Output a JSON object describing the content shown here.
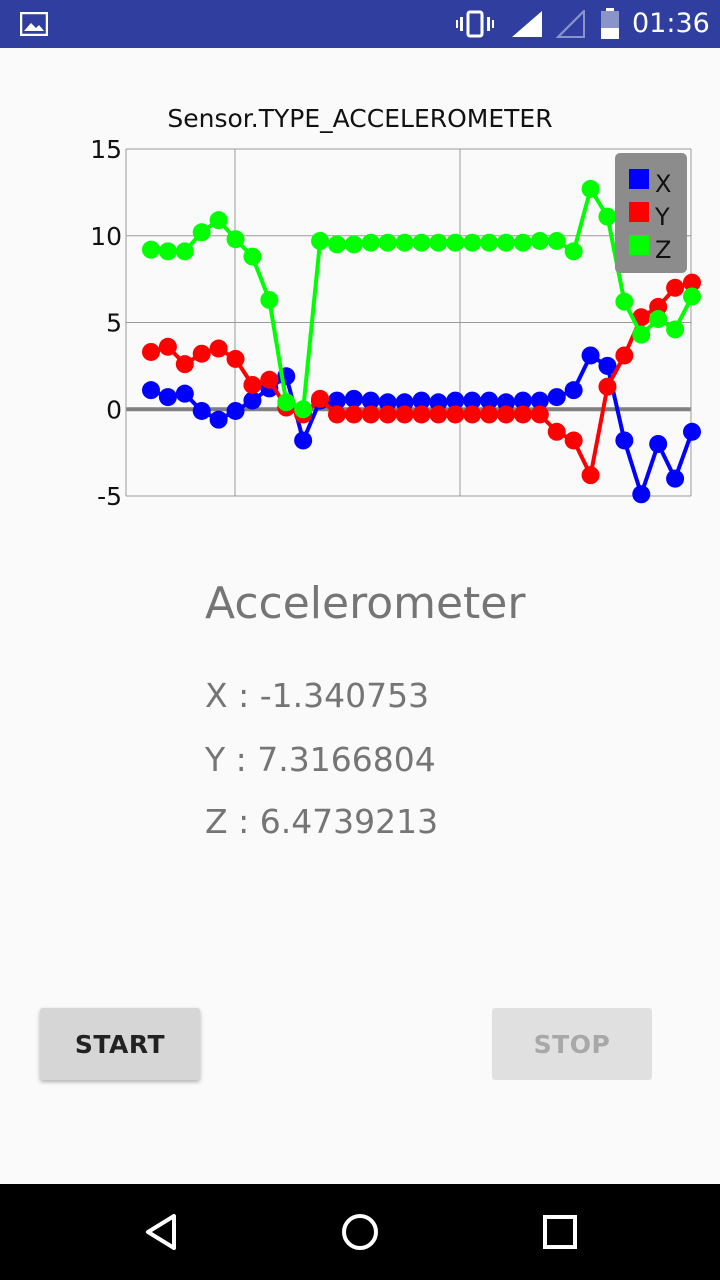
{
  "status_bar": {
    "time": "01:36",
    "icons": [
      "image-notification-icon",
      "vibrate-icon",
      "signal-icon",
      "signal-empty-icon",
      "battery-icon"
    ]
  },
  "chart_data": {
    "type": "line",
    "title": "Sensor.TYPE_ACCELEROMETER",
    "xlabel": "",
    "ylabel": "",
    "ylim": [
      -5,
      15
    ],
    "yticks": [
      "15",
      "10",
      "5",
      "0",
      "-5"
    ],
    "grid": true,
    "legend": "top-right",
    "x": [
      0,
      1,
      2,
      3,
      4,
      5,
      6,
      7,
      8,
      9,
      10,
      11,
      12,
      13,
      14,
      15,
      16,
      17,
      18,
      19,
      20,
      21,
      22,
      23,
      24,
      25,
      26,
      27,
      28,
      29,
      30,
      31,
      32
    ],
    "series": [
      {
        "name": "X",
        "color": "#0000ff",
        "values": [
          1.1,
          0.7,
          0.9,
          -0.1,
          -0.6,
          -0.1,
          0.5,
          1.2,
          1.9,
          -1.8,
          0.5,
          0.5,
          0.6,
          0.5,
          0.4,
          0.4,
          0.5,
          0.4,
          0.5,
          0.5,
          0.5,
          0.4,
          0.5,
          0.5,
          0.7,
          1.1,
          3.1,
          2.5,
          -1.8,
          -4.9,
          -2.0,
          -4.0,
          -1.3
        ]
      },
      {
        "name": "Y",
        "color": "#ff0000",
        "values": [
          3.3,
          3.6,
          2.6,
          3.2,
          3.5,
          2.9,
          1.4,
          1.7,
          0.1,
          -0.3,
          0.6,
          -0.3,
          -0.3,
          -0.3,
          -0.3,
          -0.3,
          -0.3,
          -0.3,
          -0.3,
          -0.3,
          -0.3,
          -0.3,
          -0.3,
          -0.3,
          -1.3,
          -1.8,
          -3.8,
          1.3,
          3.1,
          5.3,
          5.9,
          7.0,
          7.3
        ]
      },
      {
        "name": "Z",
        "color": "#00ff00",
        "values": [
          9.2,
          9.1,
          9.1,
          10.2,
          10.9,
          9.8,
          8.8,
          6.3,
          0.4,
          0.0,
          9.7,
          9.5,
          9.5,
          9.6,
          9.6,
          9.6,
          9.6,
          9.6,
          9.6,
          9.6,
          9.6,
          9.6,
          9.6,
          9.7,
          9.7,
          9.1,
          12.7,
          11.1,
          6.2,
          4.3,
          5.2,
          4.6,
          6.5
        ]
      }
    ]
  },
  "sensor": {
    "title": "Accelerometer",
    "x_label": "X : -1.340753",
    "y_label": "Y : 7.3166804",
    "z_label": "Z : 6.4739213"
  },
  "buttons": {
    "start": "START",
    "stop": "STOP"
  }
}
